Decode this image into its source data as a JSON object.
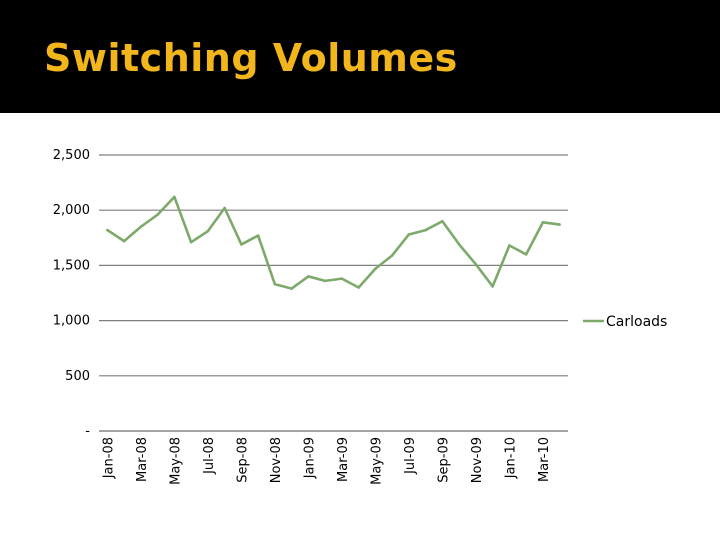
{
  "slide": {
    "title": "Switching Volumes",
    "title_color": "#f2b51c",
    "header_bg": "#000000"
  },
  "chart_data": {
    "type": "line",
    "title": "",
    "xlabel": "",
    "ylabel": "",
    "ylim": [
      0,
      2500
    ],
    "yticks": [
      {
        "value": 0,
        "label": "-"
      },
      {
        "value": 500,
        "label": "500"
      },
      {
        "value": 1000,
        "label": "1,000"
      },
      {
        "value": 1500,
        "label": "1,500"
      },
      {
        "value": 2000,
        "label": "2,000"
      },
      {
        "value": 2500,
        "label": "2,500"
      }
    ],
    "xtick_labels": [
      "Jan-08",
      "Mar-08",
      "May-08",
      "Jul-08",
      "Sep-08",
      "Nov-08",
      "Jan-09",
      "Mar-09",
      "May-09",
      "Jul-09",
      "Sep-09",
      "Nov-09",
      "Jan-10",
      "Mar-10"
    ],
    "categories": [
      "Jan-08",
      "Feb-08",
      "Mar-08",
      "Apr-08",
      "May-08",
      "Jun-08",
      "Jul-08",
      "Aug-08",
      "Sep-08",
      "Oct-08",
      "Nov-08",
      "Dec-08",
      "Jan-09",
      "Feb-09",
      "Mar-09",
      "Apr-09",
      "May-09",
      "Jun-09",
      "Jul-09",
      "Aug-09",
      "Sep-09",
      "Oct-09",
      "Nov-09",
      "Dec-09",
      "Jan-10",
      "Feb-10",
      "Mar-10",
      "Apr-10"
    ],
    "series": [
      {
        "name": "Carloads",
        "color": "#7daa6a",
        "values": [
          1820,
          1720,
          1850,
          1960,
          2120,
          1710,
          1810,
          2020,
          1690,
          1770,
          1330,
          1290,
          1400,
          1360,
          1380,
          1300,
          1470,
          1590,
          1780,
          1820,
          1900,
          1690,
          1510,
          1310,
          1680,
          1600,
          1890,
          1870
        ]
      }
    ],
    "grid": true,
    "legend": "right"
  }
}
